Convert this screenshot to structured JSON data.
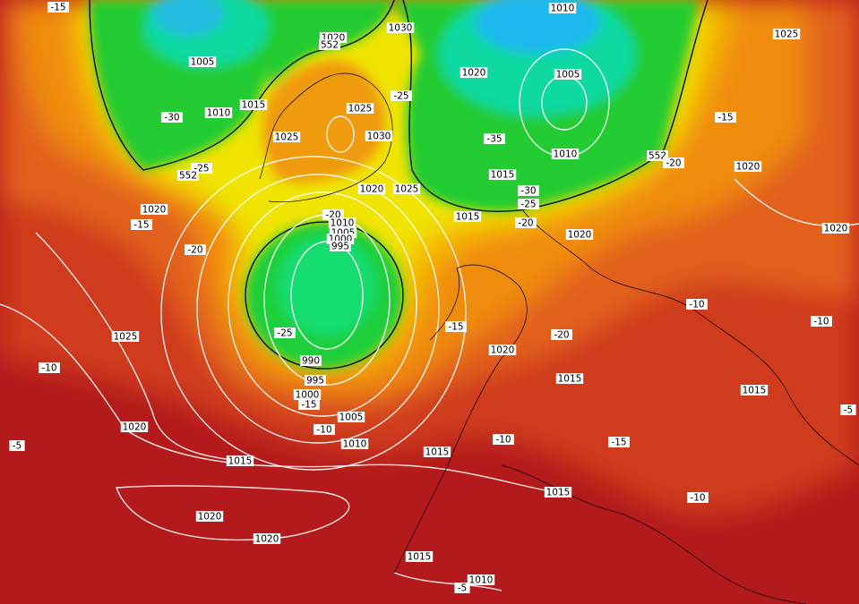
{
  "contour_labels": [
    "-15",
    "1010",
    "1025",
    "1030",
    "1020",
    "552",
    "1005",
    "1020",
    "1005",
    "-25",
    "1010",
    "1015",
    "-30",
    "1025",
    "-15",
    "1030",
    "1025",
    "-35",
    "1010",
    "552",
    "-20",
    "1020",
    "-25",
    "552",
    "1015",
    "1020",
    "1025",
    "-30",
    "-25",
    "1020",
    "-20",
    "1015",
    "-20",
    "-15",
    "1010",
    "1020",
    "1005",
    "1000",
    "1020",
    "995",
    "-20",
    "-10",
    "-10",
    "-15",
    "-25",
    "1025",
    "-20",
    "1020",
    "990",
    "-10",
    "1015",
    "995",
    "1015",
    "1000",
    "-15",
    "-5",
    "1005",
    "1020",
    "-10",
    "-10",
    "-15",
    "1010",
    "-5",
    "1015",
    "1015",
    "1015",
    "-10",
    "1020",
    "1020",
    "1015",
    "1010",
    "-5"
  ]
}
